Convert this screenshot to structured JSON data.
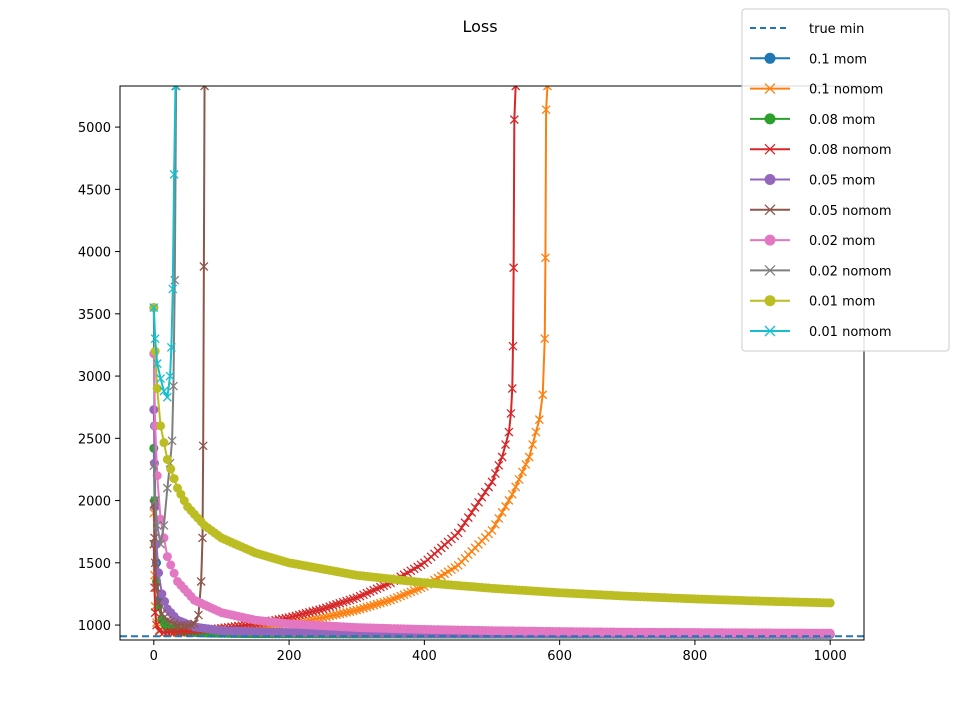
{
  "chart_data": {
    "type": "line",
    "title": "Loss",
    "xlabel": "",
    "ylabel": "",
    "xlim": [
      -50,
      1050
    ],
    "ylim": [
      880,
      5330
    ],
    "x_ticks": [
      0,
      200,
      400,
      600,
      800,
      1000
    ],
    "y_ticks": [
      1000,
      1500,
      2000,
      2500,
      3000,
      3500,
      4000,
      4500,
      5000
    ],
    "grid": false,
    "legend_position": "top-right",
    "reference_line": {
      "name": "true min",
      "y": 910,
      "style": "dashed",
      "color": "#1f77b4"
    },
    "series": [
      {
        "name": "0.1 mom",
        "color": "#1f77b4",
        "marker": "circle",
        "points": [
          [
            0,
            3550
          ],
          [
            1,
            2600
          ],
          [
            2,
            2000
          ],
          [
            4,
            1500
          ],
          [
            7,
            1200
          ],
          [
            12,
            1050
          ],
          [
            20,
            975
          ],
          [
            40,
            945
          ],
          [
            80,
            935
          ],
          [
            150,
            930
          ],
          [
            300,
            928
          ],
          [
            500,
            927
          ],
          [
            800,
            926
          ],
          [
            1000,
            925
          ]
        ]
      },
      {
        "name": "0.1 nomom",
        "color": "#ff7f0e",
        "marker": "x",
        "points": [
          [
            0,
            1900
          ],
          [
            1,
            1400
          ],
          [
            2,
            1150
          ],
          [
            4,
            1020
          ],
          [
            8,
            960
          ],
          [
            15,
            940
          ],
          [
            30,
            938
          ],
          [
            60,
            940
          ],
          [
            100,
            950
          ],
          [
            150,
            975
          ],
          [
            200,
            1010
          ],
          [
            250,
            1060
          ],
          [
            300,
            1120
          ],
          [
            350,
            1200
          ],
          [
            400,
            1310
          ],
          [
            450,
            1480
          ],
          [
            500,
            1760
          ],
          [
            530,
            2050
          ],
          [
            555,
            2350
          ],
          [
            570,
            2650
          ],
          [
            575,
            2850
          ],
          [
            578,
            3300
          ],
          [
            579,
            3950
          ],
          [
            580,
            5140
          ],
          [
            582,
            5330
          ]
        ]
      },
      {
        "name": "0.08 mom",
        "color": "#2ca02c",
        "marker": "circle",
        "points": [
          [
            0,
            2420
          ],
          [
            1,
            2000
          ],
          [
            2,
            1650
          ],
          [
            4,
            1350
          ],
          [
            7,
            1150
          ],
          [
            12,
            1040
          ],
          [
            20,
            980
          ],
          [
            40,
            950
          ],
          [
            80,
            938
          ],
          [
            150,
            932
          ],
          [
            300,
            930
          ],
          [
            600,
            928
          ],
          [
            1000,
            927
          ]
        ]
      },
      {
        "name": "0.08 nomom",
        "color": "#d62728",
        "marker": "x",
        "points": [
          [
            0,
            1650
          ],
          [
            1,
            1300
          ],
          [
            2,
            1100
          ],
          [
            4,
            1000
          ],
          [
            8,
            950
          ],
          [
            15,
            940
          ],
          [
            30,
            945
          ],
          [
            60,
            955
          ],
          [
            100,
            975
          ],
          [
            150,
            1010
          ],
          [
            200,
            1060
          ],
          [
            250,
            1130
          ],
          [
            300,
            1220
          ],
          [
            350,
            1340
          ],
          [
            400,
            1500
          ],
          [
            450,
            1740
          ],
          [
            500,
            2150
          ],
          [
            515,
            2350
          ],
          [
            525,
            2550
          ],
          [
            528,
            2700
          ],
          [
            530,
            2900
          ],
          [
            531,
            3240
          ],
          [
            532,
            3870
          ],
          [
            533,
            5060
          ],
          [
            535,
            5330
          ]
        ]
      },
      {
        "name": "0.05 mom",
        "color": "#9467bd",
        "marker": "circle",
        "points": [
          [
            0,
            2730
          ],
          [
            1,
            2300
          ],
          [
            2,
            1950
          ],
          [
            4,
            1650
          ],
          [
            7,
            1420
          ],
          [
            12,
            1250
          ],
          [
            20,
            1130
          ],
          [
            35,
            1040
          ],
          [
            60,
            985
          ],
          [
            100,
            955
          ],
          [
            200,
            940
          ],
          [
            400,
            932
          ],
          [
            700,
            929
          ],
          [
            1000,
            928
          ]
        ]
      },
      {
        "name": "0.05 nomom",
        "color": "#8c564b",
        "marker": "x",
        "points": [
          [
            0,
            1970
          ],
          [
            1,
            1700
          ],
          [
            2,
            1500
          ],
          [
            4,
            1300
          ],
          [
            7,
            1180
          ],
          [
            12,
            1090
          ],
          [
            20,
            1040
          ],
          [
            35,
            1000
          ],
          [
            50,
            995
          ],
          [
            60,
            1010
          ],
          [
            66,
            1080
          ],
          [
            70,
            1350
          ],
          [
            72,
            1700
          ],
          [
            73,
            2440
          ],
          [
            74,
            3880
          ],
          [
            75,
            5330
          ]
        ]
      },
      {
        "name": "0.02 mom",
        "color": "#e377c2",
        "marker": "circle",
        "points": [
          [
            0,
            3180
          ],
          [
            2,
            2600
          ],
          [
            5,
            2200
          ],
          [
            10,
            1850
          ],
          [
            20,
            1550
          ],
          [
            35,
            1350
          ],
          [
            60,
            1200
          ],
          [
            100,
            1100
          ],
          [
            150,
            1040
          ],
          [
            200,
            1010
          ],
          [
            300,
            980
          ],
          [
            400,
            965
          ],
          [
            500,
            955
          ],
          [
            600,
            948
          ],
          [
            700,
            943
          ],
          [
            800,
            940
          ],
          [
            900,
            937
          ],
          [
            1000,
            935
          ]
        ]
      },
      {
        "name": "0.02 nomom",
        "color": "#7f7f7f",
        "marker": "x",
        "points": [
          [
            0,
            2280
          ],
          [
            2,
            2000
          ],
          [
            5,
            1800
          ],
          [
            10,
            1650
          ],
          [
            15,
            1800
          ],
          [
            20,
            2100
          ],
          [
            24,
            2300
          ],
          [
            27,
            2480
          ],
          [
            29,
            2920
          ],
          [
            31,
            3770
          ],
          [
            33,
            5330
          ]
        ]
      },
      {
        "name": "0.01 mom",
        "color": "#bcbd22",
        "marker": "circle",
        "points": [
          [
            0,
            3550
          ],
          [
            2,
            3200
          ],
          [
            5,
            2900
          ],
          [
            10,
            2600
          ],
          [
            20,
            2330
          ],
          [
            35,
            2100
          ],
          [
            50,
            1950
          ],
          [
            75,
            1800
          ],
          [
            100,
            1700
          ],
          [
            150,
            1580
          ],
          [
            200,
            1500
          ],
          [
            300,
            1400
          ],
          [
            400,
            1340
          ],
          [
            500,
            1295
          ],
          [
            600,
            1260
          ],
          [
            700,
            1232
          ],
          [
            800,
            1210
          ],
          [
            900,
            1192
          ],
          [
            1000,
            1178
          ]
        ]
      },
      {
        "name": "0.01 nomom",
        "color": "#17becf",
        "marker": "x",
        "points": [
          [
            0,
            3550
          ],
          [
            2,
            3300
          ],
          [
            5,
            3100
          ],
          [
            10,
            2980
          ],
          [
            15,
            2880
          ],
          [
            20,
            2830
          ],
          [
            24,
            3000
          ],
          [
            26,
            3230
          ],
          [
            28,
            3700
          ],
          [
            30,
            4620
          ],
          [
            32,
            5330
          ]
        ]
      }
    ]
  }
}
